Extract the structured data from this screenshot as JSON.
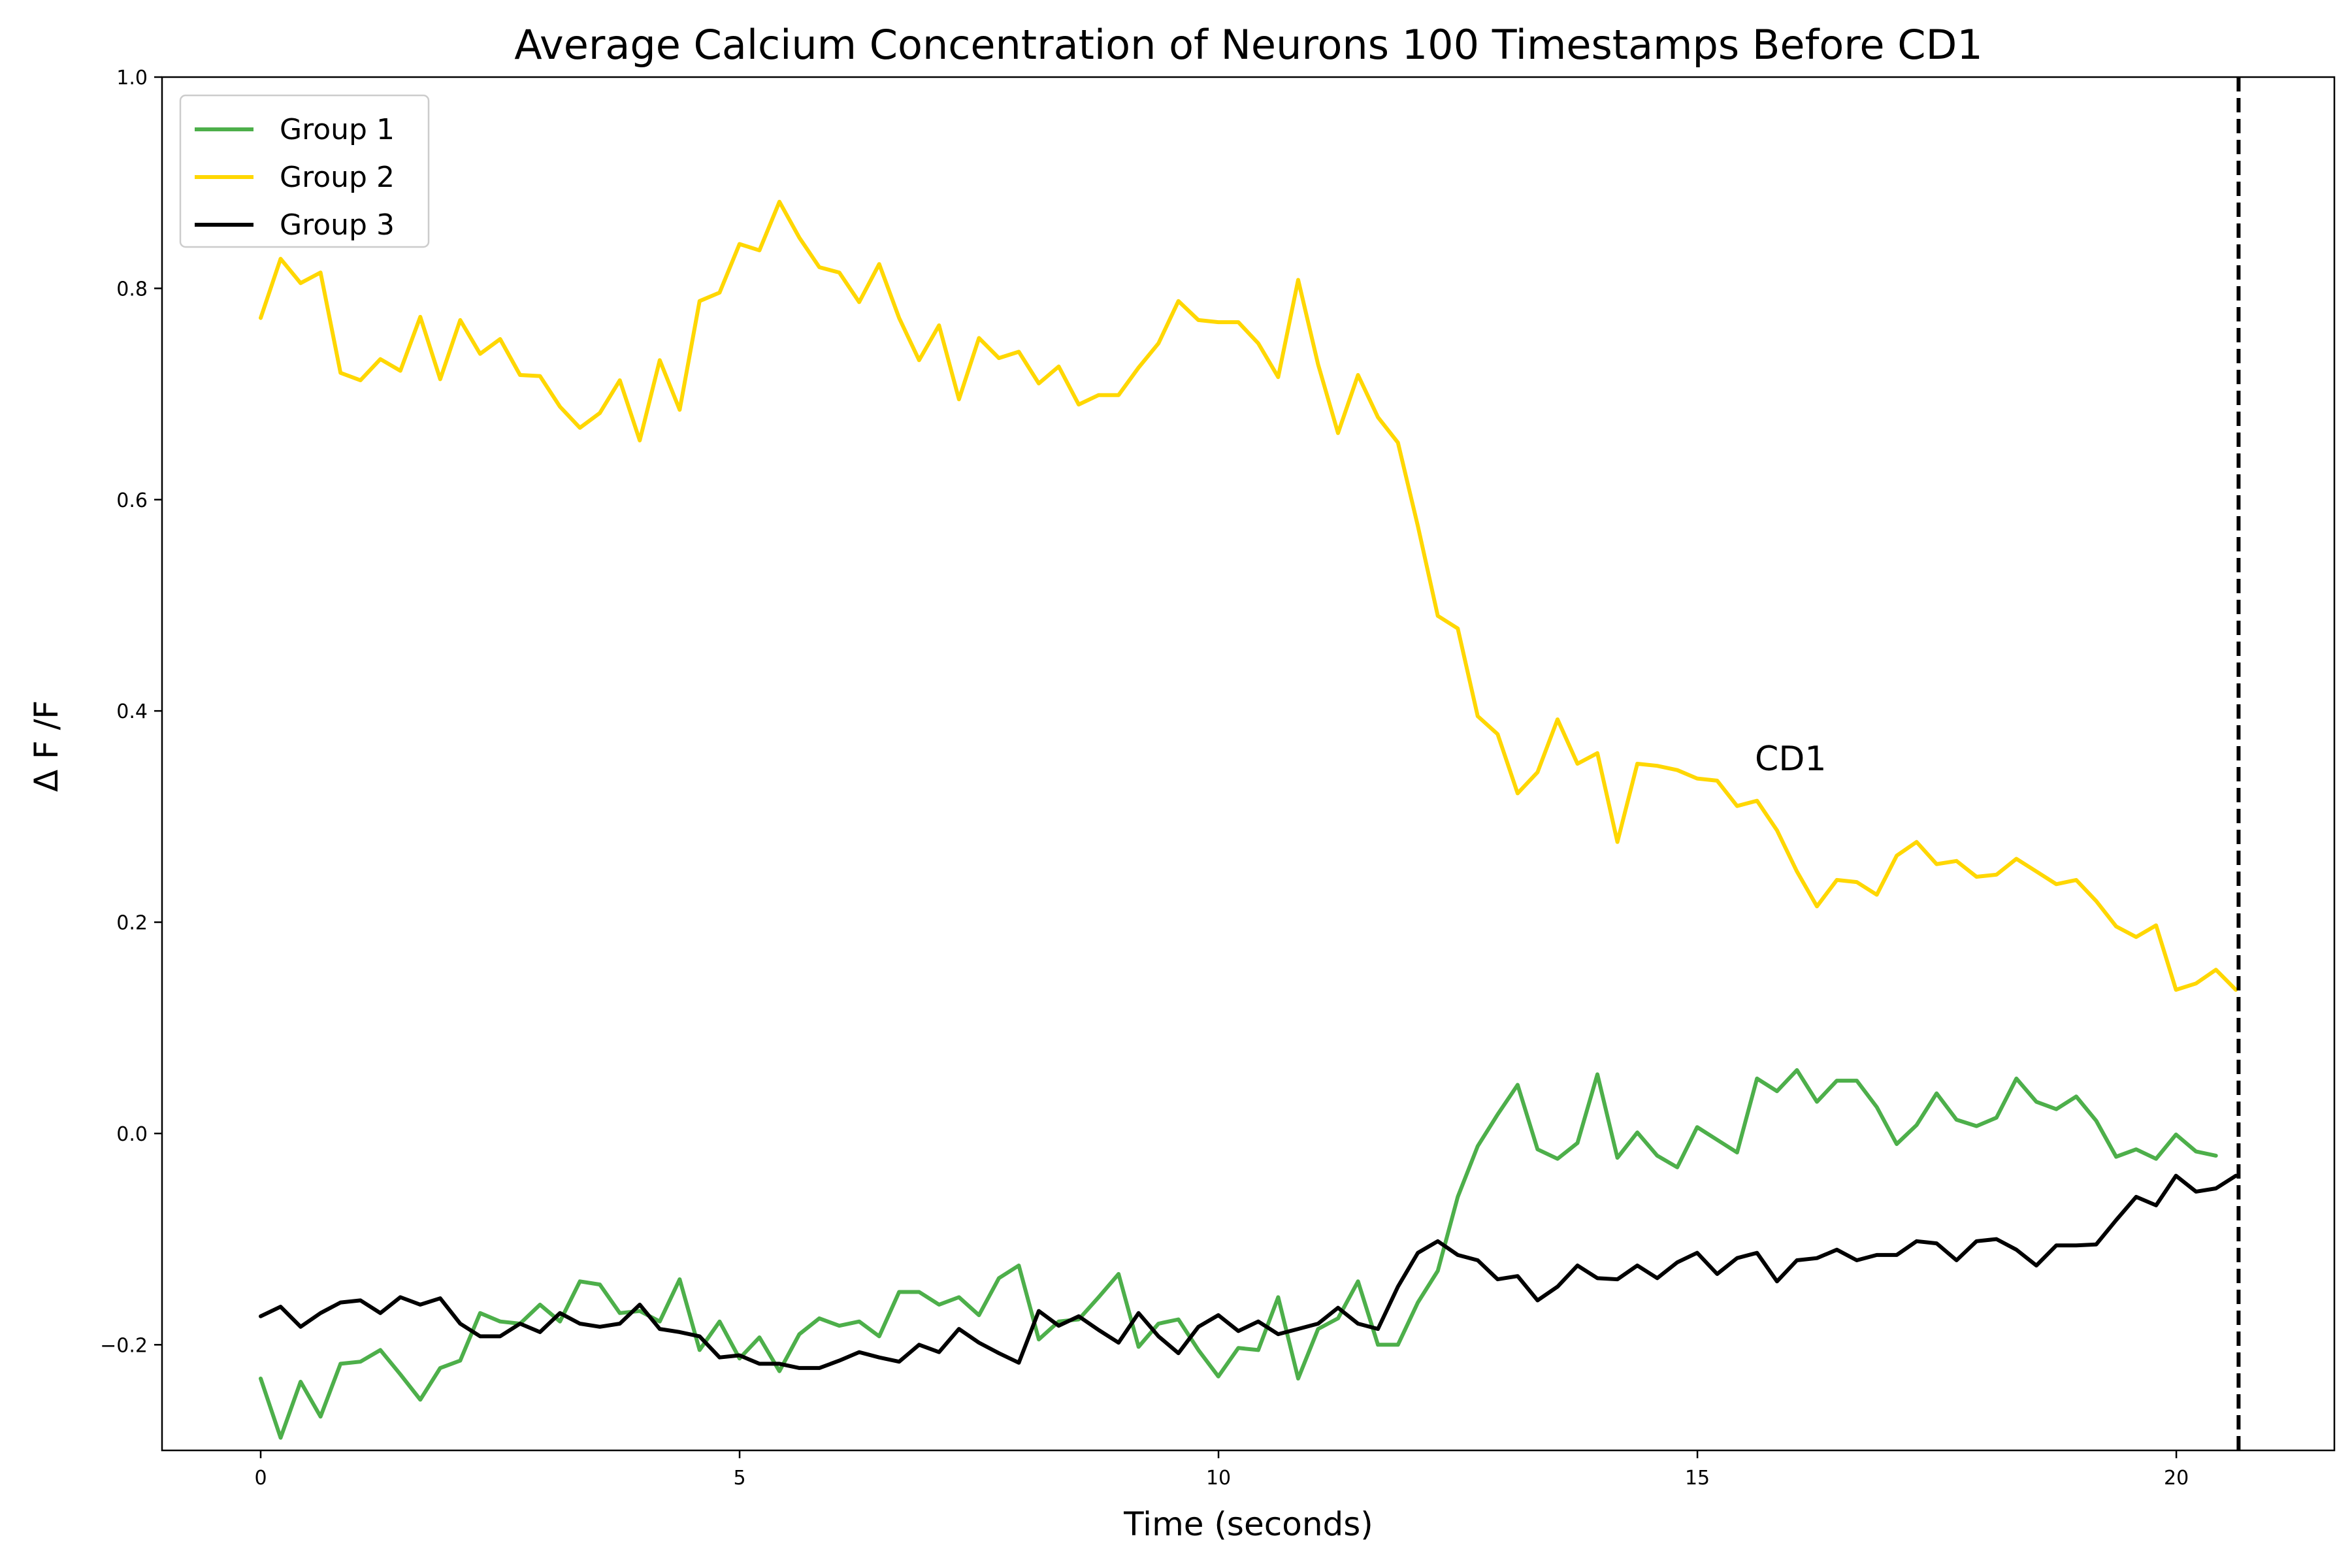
{
  "chart_data": {
    "type": "line",
    "title": "Average Calcium Concentration of Neurons 100 Timestamps Before CD1",
    "xlabel": "Time (seconds)",
    "ylabel": "Δ F /F",
    "xlim": [
      -1.03,
      21.65
    ],
    "ylim": [
      -0.3,
      1.0
    ],
    "xticks": [
      0,
      5,
      10,
      15,
      20
    ],
    "yticks": [
      -0.2,
      0.0,
      0.2,
      0.4,
      0.6,
      0.8,
      1.0
    ],
    "ytick_labels": [
      "−0.2",
      "0.0",
      "0.2",
      "0.4",
      "0.6",
      "0.8",
      "1.0"
    ],
    "grid": false,
    "legend_position": "upper-left",
    "x_step": 0.2083,
    "series": [
      {
        "name": "Group 1",
        "color": "#4daf4a",
        "values": [
          -0.232,
          -0.288,
          -0.235,
          -0.268,
          -0.218,
          -0.216,
          -0.205,
          -0.228,
          -0.252,
          -0.222,
          -0.215,
          -0.17,
          -0.178,
          -0.18,
          -0.162,
          -0.178,
          -0.14,
          -0.143,
          -0.17,
          -0.168,
          -0.178,
          -0.138,
          -0.205,
          -0.178,
          -0.213,
          -0.193,
          -0.225,
          -0.19,
          -0.175,
          -0.182,
          -0.178,
          -0.192,
          -0.15,
          -0.15,
          -0.162,
          -0.155,
          -0.172,
          -0.137,
          -0.125,
          -0.195,
          -0.178,
          -0.176,
          -0.155,
          -0.133,
          -0.202,
          -0.18,
          -0.176,
          -0.205,
          -0.23,
          -0.203,
          -0.205,
          -0.155,
          -0.232,
          -0.185,
          -0.175,
          -0.14,
          -0.2,
          -0.2,
          -0.16,
          -0.13,
          -0.06,
          -0.012,
          0.018,
          0.046,
          -0.015,
          -0.024,
          -0.009,
          0.056,
          -0.023,
          0.001,
          -0.021,
          -0.032,
          0.006,
          -0.006,
          -0.018,
          0.052,
          0.04,
          0.06,
          0.03,
          0.05,
          0.05,
          0.025,
          -0.01,
          0.008,
          0.038,
          0.013,
          0.007,
          0.015,
          0.052,
          0.03,
          0.023,
          0.035,
          0.012,
          -0.022,
          -0.015,
          -0.024,
          -0.001,
          -0.017,
          -0.021
        ]
      },
      {
        "name": "Group 2",
        "color": "#ffd700",
        "values": [
          0.772,
          0.828,
          0.805,
          0.815,
          0.72,
          0.713,
          0.733,
          0.722,
          0.773,
          0.714,
          0.77,
          0.738,
          0.752,
          0.718,
          0.717,
          0.688,
          0.668,
          0.682,
          0.713,
          0.656,
          0.732,
          0.685,
          0.788,
          0.796,
          0.842,
          0.836,
          0.882,
          0.848,
          0.82,
          0.815,
          0.787,
          0.823,
          0.772,
          0.732,
          0.765,
          0.695,
          0.753,
          0.734,
          0.74,
          0.71,
          0.726,
          0.69,
          0.699,
          0.699,
          0.725,
          0.748,
          0.788,
          0.77,
          0.768,
          0.768,
          0.748,
          0.716,
          0.808,
          0.728,
          0.663,
          0.718,
          0.678,
          0.654,
          0.575,
          0.49,
          0.478,
          0.395,
          0.378,
          0.322,
          0.342,
          0.392,
          0.35,
          0.36,
          0.276,
          0.35,
          0.348,
          0.344,
          0.336,
          0.334,
          0.31,
          0.315,
          0.287,
          0.248,
          0.215,
          0.24,
          0.238,
          0.226,
          0.263,
          0.276,
          0.255,
          0.258,
          0.243,
          0.245,
          0.26,
          0.248,
          0.236,
          0.24,
          0.22,
          0.196,
          0.186,
          0.197,
          0.136,
          0.142,
          0.155,
          0.136
        ]
      },
      {
        "name": "Group 3",
        "color": "#000000",
        "values": [
          -0.173,
          -0.164,
          -0.183,
          -0.17,
          -0.16,
          -0.158,
          -0.17,
          -0.155,
          -0.162,
          -0.156,
          -0.18,
          -0.192,
          -0.192,
          -0.18,
          -0.188,
          -0.17,
          -0.18,
          -0.183,
          -0.18,
          -0.162,
          -0.185,
          -0.188,
          -0.192,
          -0.212,
          -0.21,
          -0.218,
          -0.218,
          -0.222,
          -0.222,
          -0.215,
          -0.207,
          -0.212,
          -0.216,
          -0.2,
          -0.207,
          -0.185,
          -0.198,
          -0.208,
          -0.217,
          -0.168,
          -0.182,
          -0.173,
          -0.186,
          -0.198,
          -0.17,
          -0.192,
          -0.208,
          -0.183,
          -0.172,
          -0.187,
          -0.178,
          -0.19,
          -0.185,
          -0.18,
          -0.165,
          -0.18,
          -0.185,
          -0.145,
          -0.113,
          -0.102,
          -0.115,
          -0.12,
          -0.138,
          -0.135,
          -0.158,
          -0.145,
          -0.125,
          -0.137,
          -0.138,
          -0.125,
          -0.137,
          -0.122,
          -0.113,
          -0.133,
          -0.118,
          -0.113,
          -0.14,
          -0.12,
          -0.118,
          -0.11,
          -0.12,
          -0.115,
          -0.115,
          -0.102,
          -0.104,
          -0.12,
          -0.102,
          -0.1,
          -0.11,
          -0.125,
          -0.106,
          -0.106,
          -0.105,
          -0.082,
          -0.06,
          -0.068,
          -0.04,
          -0.055,
          -0.052,
          -0.04
        ]
      }
    ],
    "vline": {
      "x": 20.65,
      "style": "dashed",
      "color": "#000000"
    },
    "annotations": [
      {
        "text": "CD1",
        "x": 15.6,
        "y": 0.355
      }
    ]
  }
}
